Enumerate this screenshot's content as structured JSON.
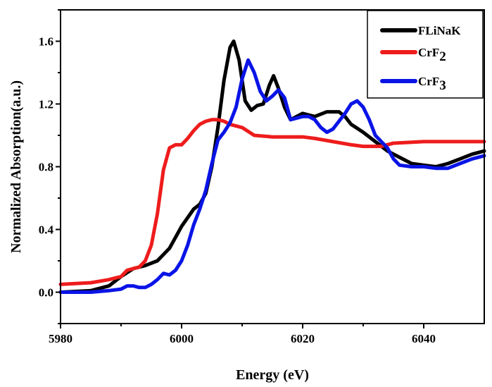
{
  "chart_data": {
    "type": "line",
    "title": "",
    "xlabel": "Energy (eV)",
    "ylabel": "Normalized Absorption(a.u.)",
    "xlim": [
      5980,
      6050
    ],
    "ylim": [
      -0.2,
      1.8
    ],
    "xticks": [
      5980,
      6000,
      6020,
      6040
    ],
    "xtick_labels": [
      "5980",
      "6000",
      "6020",
      "6040"
    ],
    "yticks": [
      0.0,
      0.4,
      0.8,
      1.2,
      1.6
    ],
    "ytick_labels": [
      "0.0",
      "0.4",
      "0.8",
      "1.2",
      "1.6"
    ],
    "grid": false,
    "legend_position": "top-right",
    "series": [
      {
        "name": "FLiNaK",
        "legend": {
          "main": "FLiNaK",
          "sub": ""
        },
        "color": "#000000",
        "x": [
          5980,
          5985,
          5988,
          5990,
          5992,
          5994,
          5996,
          5998,
          6000,
          6002,
          6003,
          6004,
          6005,
          6006,
          6007,
          6008,
          6008.6,
          6009.5,
          6010.5,
          6011.5,
          6012.5,
          6013.5,
          6014.5,
          6015.2,
          6016,
          6017,
          6018,
          6019,
          6020,
          6022,
          6024,
          6026,
          6027,
          6028,
          6030,
          6032,
          6034,
          6036,
          6038,
          6040,
          6042,
          6044,
          6046,
          6048,
          6050
        ],
        "y": [
          0.0,
          0.01,
          0.04,
          0.1,
          0.15,
          0.17,
          0.2,
          0.28,
          0.42,
          0.53,
          0.56,
          0.63,
          0.8,
          1.05,
          1.35,
          1.56,
          1.6,
          1.48,
          1.22,
          1.16,
          1.19,
          1.2,
          1.32,
          1.38,
          1.3,
          1.18,
          1.1,
          1.12,
          1.14,
          1.12,
          1.15,
          1.15,
          1.12,
          1.07,
          1.02,
          0.96,
          0.9,
          0.86,
          0.82,
          0.81,
          0.8,
          0.82,
          0.85,
          0.88,
          0.9
        ]
      },
      {
        "name": "CrF2",
        "legend": {
          "main": "CrF",
          "sub": "2"
        },
        "color": "#ee1c1c",
        "x": [
          5980,
          5985,
          5988,
          5990,
          5991,
          5992,
          5993,
          5994,
          5995,
          5996,
          5997,
          5998,
          5999,
          6000,
          6001,
          6002,
          6003,
          6004,
          6005,
          6006,
          6007,
          6008,
          6010,
          6012,
          6015,
          6020,
          6022,
          6025,
          6028,
          6030,
          6033,
          6035,
          6040,
          6045,
          6050
        ],
        "y": [
          0.05,
          0.06,
          0.08,
          0.1,
          0.14,
          0.15,
          0.16,
          0.2,
          0.3,
          0.5,
          0.78,
          0.92,
          0.94,
          0.94,
          0.98,
          1.03,
          1.07,
          1.09,
          1.1,
          1.1,
          1.09,
          1.07,
          1.05,
          1.0,
          0.99,
          0.99,
          0.98,
          0.96,
          0.94,
          0.93,
          0.93,
          0.95,
          0.96,
          0.96,
          0.96
        ]
      },
      {
        "name": "CrF3",
        "legend": {
          "main": "CrF",
          "sub": "3"
        },
        "color": "#0a14e6",
        "x": [
          5980,
          5985,
          5988,
          5990,
          5991,
          5992,
          5993,
          5994,
          5995,
          5996,
          5997,
          5998,
          5999,
          6000,
          6001,
          6002,
          6003,
          6004,
          6005,
          6006,
          6007,
          6008,
          6009,
          6010,
          6011,
          6012,
          6013,
          6014,
          6015,
          6016,
          6017,
          6018,
          6020,
          6021,
          6022,
          6023,
          6024,
          6025,
          6027,
          6028,
          6029,
          6030,
          6031,
          6032,
          6034,
          6035,
          6036,
          6038,
          6040,
          6042,
          6044,
          6046,
          6048,
          6050
        ],
        "y": [
          0.0,
          0.0,
          0.01,
          0.02,
          0.04,
          0.04,
          0.03,
          0.03,
          0.05,
          0.08,
          0.12,
          0.11,
          0.14,
          0.2,
          0.3,
          0.43,
          0.53,
          0.65,
          0.82,
          0.97,
          1.02,
          1.08,
          1.18,
          1.36,
          1.48,
          1.4,
          1.28,
          1.22,
          1.25,
          1.29,
          1.24,
          1.1,
          1.12,
          1.12,
          1.1,
          1.05,
          1.02,
          1.04,
          1.14,
          1.2,
          1.22,
          1.18,
          1.1,
          1.0,
          0.92,
          0.85,
          0.81,
          0.8,
          0.8,
          0.79,
          0.79,
          0.82,
          0.85,
          0.87
        ]
      }
    ]
  }
}
